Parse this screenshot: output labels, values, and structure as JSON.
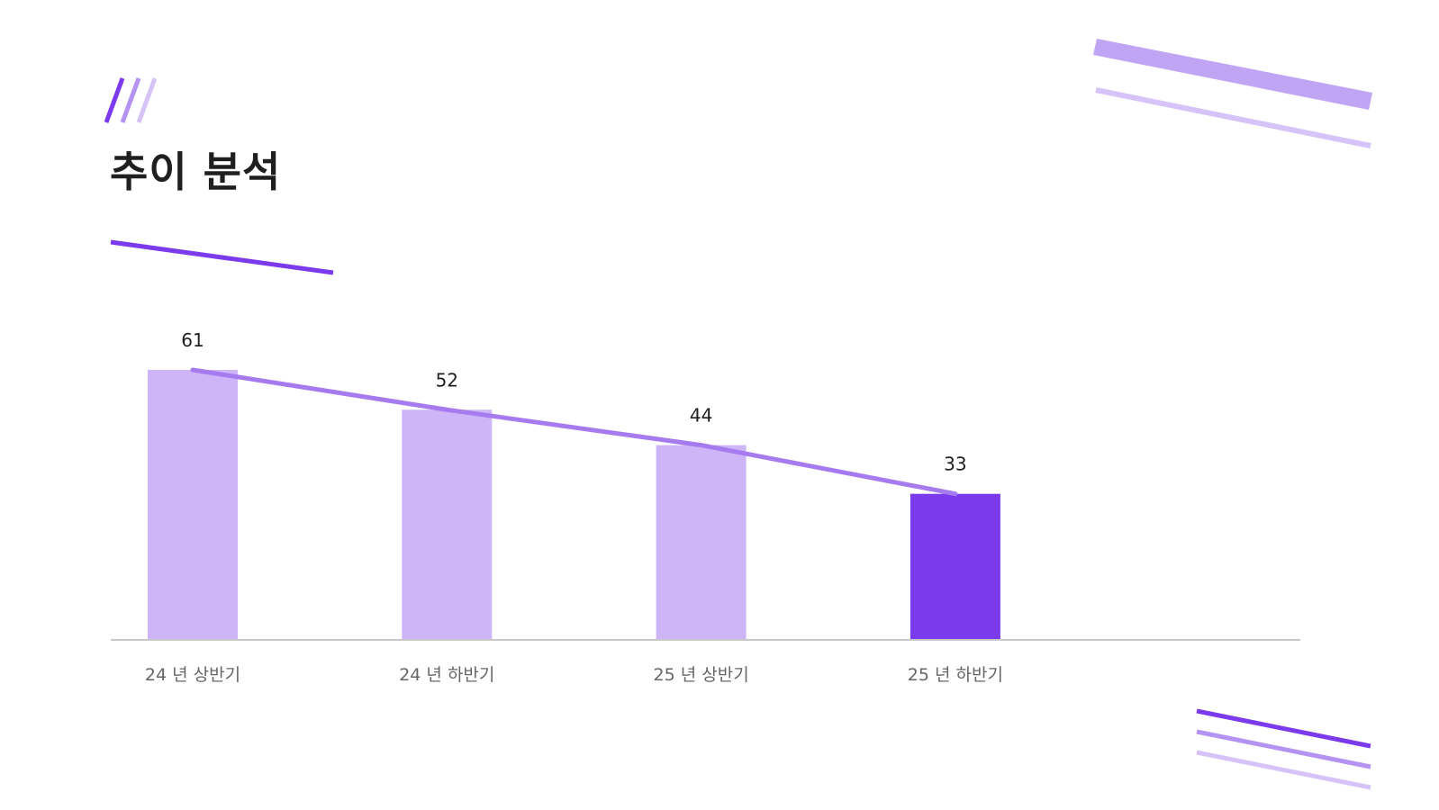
{
  "page": {
    "title": "추이 분석"
  },
  "colors": {
    "bar": "#cdb5f7",
    "bar_highlight": "#7c3aed",
    "trend_line": "#a77bf0",
    "accent_dark": "#7c3aed",
    "accent_mid": "#b493f3",
    "accent_light": "#d6c4f9",
    "axis": "#c8c8c8",
    "label_text": "#1f1f1f",
    "tick_text": "#666666"
  },
  "chart_data": {
    "type": "bar",
    "categories": [
      "24 년 상반기",
      "24 년 하반기",
      "25 년 상반기",
      "25 년 하반기"
    ],
    "values": [
      61,
      52,
      44,
      33
    ],
    "highlight_index": 3,
    "trend_line": true,
    "data_labels": [
      "61",
      "52",
      "44",
      "33"
    ],
    "title": "",
    "xlabel": "",
    "ylabel": "",
    "ylim": [
      0,
      61
    ],
    "grid": false,
    "legend": "none"
  }
}
